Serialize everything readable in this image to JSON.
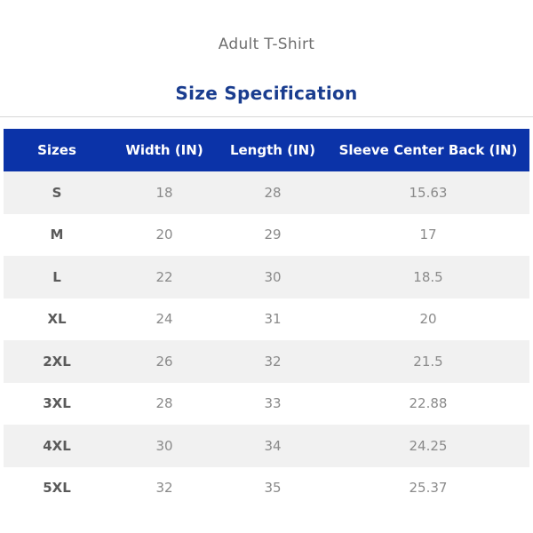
{
  "subtitle": "Adult T-Shirt",
  "title": "Size Specification",
  "table": {
    "headers": [
      "Sizes",
      "Width (IN)",
      "Length (IN)",
      "Sleeve Center Back (IN)"
    ],
    "rows": [
      [
        "S",
        "18",
        "28",
        "15.63"
      ],
      [
        "M",
        "20",
        "29",
        "17"
      ],
      [
        "L",
        "22",
        "30",
        "18.5"
      ],
      [
        "XL",
        "24",
        "31",
        "20"
      ],
      [
        "2XL",
        "26",
        "32",
        "21.5"
      ],
      [
        "3XL",
        "28",
        "33",
        "22.88"
      ],
      [
        "4XL",
        "30",
        "34",
        "24.25"
      ],
      [
        "5XL",
        "32",
        "35",
        "25.37"
      ]
    ]
  },
  "colors": {
    "header_bg": "#0b33a8",
    "title": "#1a3d8f",
    "stripe": "#f1f1f1"
  }
}
